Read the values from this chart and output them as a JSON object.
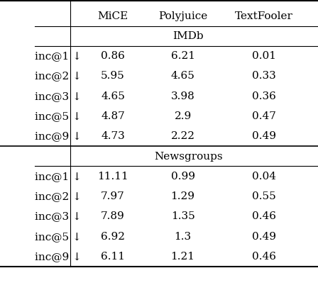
{
  "col_headers": [
    "MiCE",
    "Polyjuice",
    "TextFooler"
  ],
  "section1_title": "IMDb",
  "section2_title": "Newsgroups",
  "row_labels": [
    "inc@1 ↓",
    "inc@2 ↓",
    "inc@3 ↓",
    "inc@5 ↓",
    "inc@9 ↓"
  ],
  "imdb_data": [
    [
      "0.86",
      "6.21",
      "0.01"
    ],
    [
      "5.95",
      "4.65",
      "0.33"
    ],
    [
      "4.65",
      "3.98",
      "0.36"
    ],
    [
      "4.87",
      "2.9",
      "0.47"
    ],
    [
      "4.73",
      "2.22",
      "0.49"
    ]
  ],
  "news_data": [
    [
      "11.11",
      "0.99",
      "0.04"
    ],
    [
      "7.97",
      "1.29",
      "0.55"
    ],
    [
      "7.89",
      "1.35",
      "0.46"
    ],
    [
      "6.92",
      "1.3",
      "0.49"
    ],
    [
      "6.11",
      "1.21",
      "0.46"
    ]
  ],
  "font_size": 11,
  "header_font_size": 11,
  "section_font_size": 11,
  "bg_color": "#ffffff",
  "text_color": "#000000"
}
